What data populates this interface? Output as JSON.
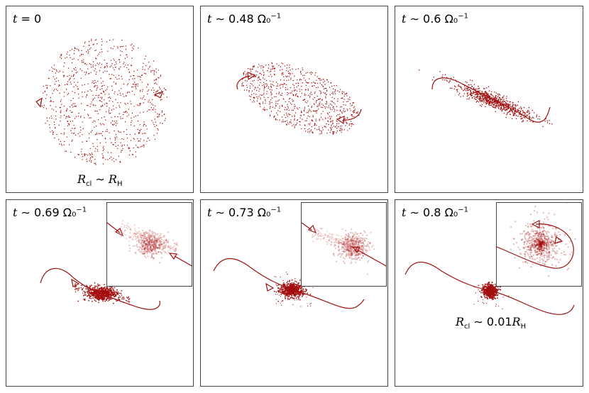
{
  "colors": {
    "cluster": "#a30d0d",
    "orbit": "#9e1212",
    "light": "#d98a8a"
  },
  "panels": [
    {
      "time_label": {
        "prefix": "t",
        "op": "=",
        "value": "0",
        "unit": "",
        "exp": ""
      },
      "radius_label": {
        "sym": "R",
        "sub": "cl",
        "op": "∼",
        "factor": "",
        "rsym": "R",
        "rsub": "H"
      }
    },
    {
      "time_label": {
        "prefix": "t",
        "op": "∼",
        "value": "0.48",
        "unit": "Ω₀",
        "exp": "−1"
      }
    },
    {
      "time_label": {
        "prefix": "t",
        "op": "∼",
        "value": "0.6",
        "unit": "Ω₀",
        "exp": "−1"
      }
    },
    {
      "time_label": {
        "prefix": "t",
        "op": "∼",
        "value": "0.69",
        "unit": "Ω₀",
        "exp": "−1"
      }
    },
    {
      "time_label": {
        "prefix": "t",
        "op": "∼",
        "value": "0.73",
        "unit": "Ω₀",
        "exp": "−1"
      }
    },
    {
      "time_label": {
        "prefix": "t",
        "op": "∼",
        "value": "0.8",
        "unit": "Ω₀",
        "exp": "−1"
      },
      "radius_label": {
        "sym": "R",
        "sub": "cl",
        "op": "∼",
        "factor": "0.01",
        "rsym": "R",
        "rsub": "H"
      }
    }
  ]
}
